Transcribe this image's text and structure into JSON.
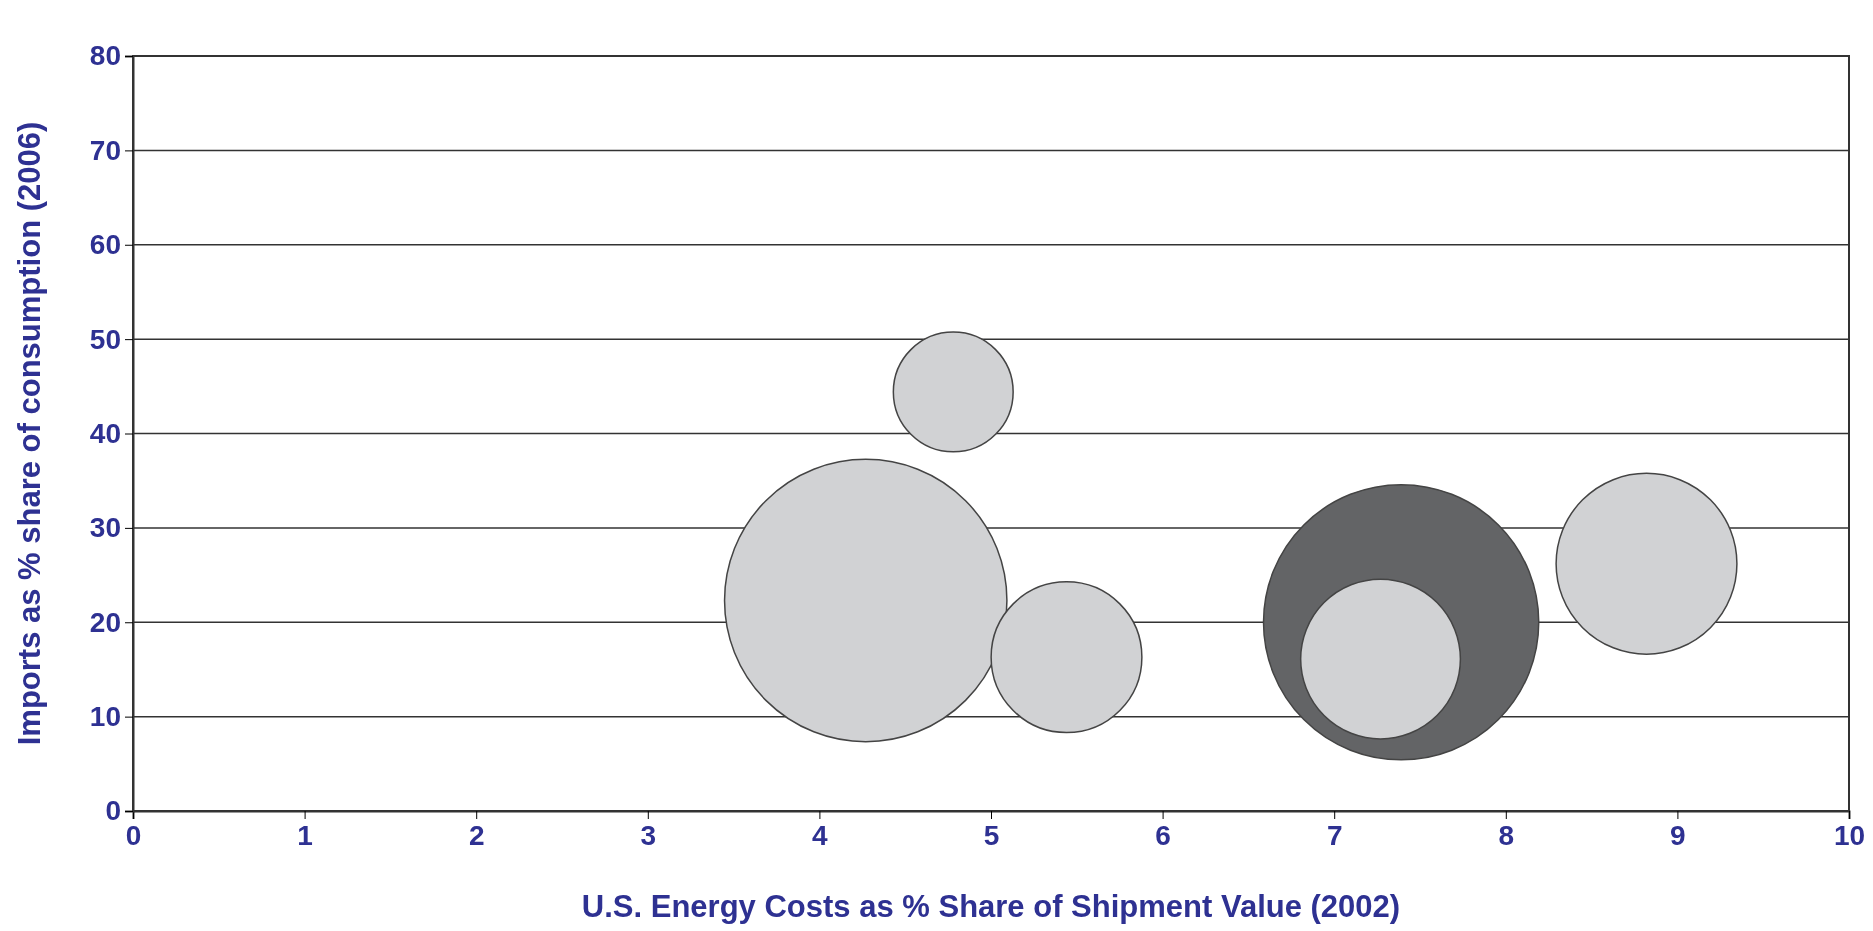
{
  "chart_data": {
    "type": "bubble",
    "xlabel": "U.S. Energy Costs as % Share of Shipment Value (2002)",
    "ylabel": "Imports as % share of consumption (2006)",
    "x": [
      4.78,
      4.27,
      5.44,
      7.39,
      7.27,
      8.82
    ],
    "values": [
      44.4,
      22.3,
      16.3,
      20.0,
      16.1,
      26.2
    ],
    "sizes": [
      0.18,
      1,
      0.285,
      0.95,
      0.32,
      0.41
    ],
    "colors": [
      "#d1d2d4",
      "#d1d2d4",
      "#d1d2d4",
      "#636466",
      "#d1d2d4",
      "#d1d2d4"
    ],
    "xlim": [
      0,
      10
    ],
    "xticks": [
      0,
      1,
      2,
      3,
      4,
      5,
      6,
      7,
      8,
      9,
      10
    ],
    "ylim": [
      0,
      80
    ],
    "yticks": [
      0,
      10,
      20,
      30,
      40,
      50,
      60,
      70,
      80
    ],
    "grid": "y"
  }
}
